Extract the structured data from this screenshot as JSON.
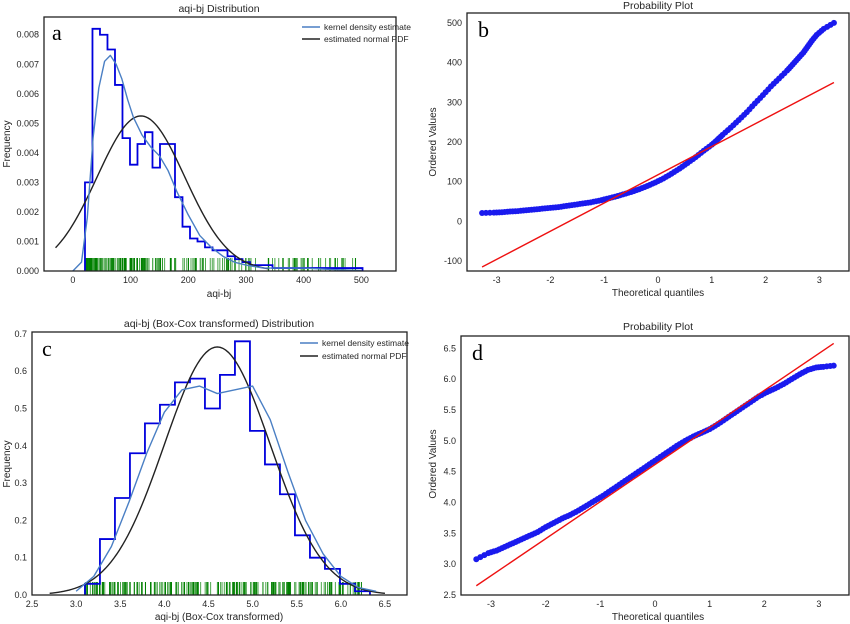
{
  "colors": {
    "hist": "#0000dd",
    "kde": "#4a7fc4",
    "normal": "#222222",
    "rug": "#008000",
    "points": "#1a1aee",
    "fitline": "#ee1111",
    "frame": "#222222"
  },
  "panels": [
    {
      "key": "a",
      "letter": "a",
      "title": "aqi-bj Distribution",
      "xlabel": "aqi-bj",
      "ylabel": "Frequency"
    },
    {
      "key": "b",
      "letter": "b",
      "title": "Probability Plot",
      "xlabel": "Theoretical quantiles",
      "ylabel": "Ordered Values"
    },
    {
      "key": "c",
      "letter": "c",
      "title": "aqi-bj (Box-Cox transformed) Distribution",
      "xlabel": "aqi-bj (Box-Cox transformed)",
      "ylabel": "Frequency"
    },
    {
      "key": "d",
      "letter": "d",
      "title": "Probability Plot",
      "xlabel": "Theoretical quantiles",
      "ylabel": "Ordered Values"
    }
  ],
  "chart_data": [
    {
      "id": "a",
      "type": "histogram+kde",
      "title": "aqi-bj Distribution",
      "xlabel": "aqi-bj",
      "ylabel": "Frequency",
      "xlim": [
        -50,
        560
      ],
      "ylim": [
        0,
        0.0086
      ],
      "xticks": [
        0,
        100,
        200,
        300,
        400,
        500
      ],
      "yticks": [
        0.0,
        0.001,
        0.002,
        0.003,
        0.004,
        0.005,
        0.006,
        0.007,
        0.008
      ],
      "ytick_labels": [
        "0.000",
        "0.001",
        "0.002",
        "0.003",
        "0.004",
        "0.005",
        "0.006",
        "0.007",
        "0.008"
      ],
      "legend": {
        "position": "top-right",
        "entries": [
          "kernel density estimate",
          "estimated normal PDF"
        ]
      },
      "hist_bin_edges": [
        21,
        34,
        47,
        60,
        73,
        86,
        99,
        112,
        125,
        138,
        151,
        164,
        177,
        190,
        203,
        216,
        229,
        242,
        255,
        268,
        281,
        294,
        307,
        320,
        333,
        346,
        359,
        372,
        385,
        398,
        411,
        424,
        437,
        450,
        463,
        476,
        489,
        502
      ],
      "hist_values": [
        0.003,
        0.0082,
        0.008,
        0.0075,
        0.0063,
        0.0045,
        0.0036,
        0.0043,
        0.0047,
        0.0035,
        0.0043,
        0.0043,
        0.0025,
        0.0015,
        0.0011,
        0.001,
        0.0008,
        0.0007,
        0.0007,
        0.0005,
        0.0004,
        0.0003,
        0.0002,
        0.0002,
        0.0002,
        0.0001,
        0.0001,
        0.0001,
        0.0001,
        0.0001,
        0.0001,
        0.0001,
        0.0001,
        0.0001,
        0.0001,
        0.0001,
        0.0001
      ],
      "kde": {
        "name": "kernel density estimate",
        "x": [
          0,
          15,
          25,
          35,
          45,
          55,
          65,
          75,
          85,
          95,
          105,
          120,
          135,
          150,
          165,
          180,
          200,
          220,
          240,
          260,
          280,
          300,
          330,
          360,
          400,
          450,
          500
        ],
        "y": [
          0.0,
          0.0003,
          0.0018,
          0.0045,
          0.0062,
          0.0071,
          0.0073,
          0.007,
          0.0065,
          0.0058,
          0.0052,
          0.0046,
          0.0042,
          0.0039,
          0.0034,
          0.0027,
          0.0019,
          0.0012,
          0.0008,
          0.0005,
          0.0003,
          0.0002,
          0.0001,
          0.0001,
          0.0001,
          5e-05,
          2e-05
        ]
      },
      "normal_pdf": {
        "name": "estimated normal PDF",
        "mean": 118,
        "std": 76,
        "x_range": [
          -30,
          340
        ]
      },
      "rug": {
        "x_range": [
          21,
          500
        ]
      }
    },
    {
      "id": "b",
      "type": "scatter",
      "title": "Probability Plot",
      "xlabel": "Theoretical quantiles",
      "ylabel": "Ordered Values",
      "xlim": [
        -3.55,
        3.55
      ],
      "ylim": [
        -125,
        525
      ],
      "xticks": [
        -3,
        -2,
        -1,
        0,
        1,
        2,
        3
      ],
      "yticks": [
        -100,
        0,
        100,
        200,
        300,
        400,
        500
      ],
      "fit_line": {
        "x": [
          -3.27,
          3.27
        ],
        "y": [
          -115,
          350
        ]
      },
      "points": {
        "x": [
          -3.27,
          -3.05,
          -2.9,
          -2.75,
          -2.6,
          -2.45,
          -2.3,
          -2.15,
          -2.0,
          -1.85,
          -1.7,
          -1.55,
          -1.4,
          -1.25,
          -1.1,
          -0.95,
          -0.8,
          -0.65,
          -0.5,
          -0.35,
          -0.2,
          -0.05,
          0.1,
          0.25,
          0.4,
          0.55,
          0.7,
          0.85,
          1.0,
          1.1,
          1.2,
          1.35,
          1.5,
          1.65,
          1.8,
          1.95,
          2.1,
          2.25,
          2.4,
          2.5,
          2.6,
          2.7,
          2.78,
          2.86,
          2.95,
          3.08,
          3.27
        ],
        "y": [
          21,
          22,
          23,
          25,
          26,
          28,
          30,
          32,
          34,
          36,
          39,
          42,
          45,
          48,
          52,
          57,
          62,
          68,
          74,
          81,
          89,
          98,
          108,
          120,
          133,
          147,
          162,
          178,
          193,
          205,
          218,
          236,
          255,
          275,
          297,
          318,
          340,
          360,
          380,
          395,
          410,
          425,
          440,
          455,
          470,
          485,
          500
        ]
      }
    },
    {
      "id": "c",
      "type": "histogram+kde",
      "title": "aqi-bj (Box-Cox transformed) Distribution",
      "xlabel": "aqi-bj (Box-Cox transformed)",
      "ylabel": "Frequency",
      "xlim": [
        2.5,
        6.75
      ],
      "ylim": [
        0,
        0.705
      ],
      "xticks": [
        2.5,
        3.0,
        3.5,
        4.0,
        4.5,
        5.0,
        5.5,
        6.0,
        6.5
      ],
      "xtick_labels": [
        "2.5",
        "3.0",
        "3.5",
        "4.0",
        "4.5",
        "5.0",
        "5.5",
        "6.0",
        "6.5"
      ],
      "yticks": [
        0.0,
        0.1,
        0.2,
        0.3,
        0.4,
        0.5,
        0.6,
        0.7
      ],
      "ytick_labels": [
        "0.0",
        "0.1",
        "0.2",
        "0.3",
        "0.4",
        "0.5",
        "0.6",
        "0.7"
      ],
      "legend": {
        "position": "top-right",
        "entries": [
          "kernel density estimate",
          "estimated normal PDF"
        ]
      },
      "hist_bin_edges": [
        3.1,
        3.27,
        3.44,
        3.61,
        3.78,
        3.95,
        4.12,
        4.29,
        4.46,
        4.63,
        4.8,
        4.97,
        5.14,
        5.31,
        5.48,
        5.65,
        5.82,
        5.99,
        6.16,
        6.33
      ],
      "hist_values": [
        0.03,
        0.15,
        0.26,
        0.38,
        0.46,
        0.51,
        0.57,
        0.58,
        0.5,
        0.59,
        0.68,
        0.44,
        0.35,
        0.27,
        0.16,
        0.1,
        0.07,
        0.03,
        0.01
      ],
      "kde": {
        "name": "kernel density estimate",
        "x": [
          3.0,
          3.2,
          3.4,
          3.6,
          3.8,
          4.0,
          4.2,
          4.4,
          4.6,
          4.8,
          5.0,
          5.2,
          5.4,
          5.6,
          5.8,
          6.0,
          6.2,
          6.4
        ],
        "y": [
          0.01,
          0.05,
          0.13,
          0.25,
          0.38,
          0.49,
          0.55,
          0.56,
          0.54,
          0.55,
          0.56,
          0.47,
          0.33,
          0.2,
          0.11,
          0.05,
          0.02,
          0.01
        ]
      },
      "normal_pdf": {
        "name": "estimated normal PDF",
        "mean": 4.6,
        "std": 0.6,
        "x_range": [
          2.7,
          6.5
        ]
      },
      "rug": {
        "x_range": [
          3.1,
          6.25
        ]
      }
    },
    {
      "id": "d",
      "type": "scatter",
      "title": "Probability Plot",
      "xlabel": "Theoretical quantiles",
      "ylabel": "Ordered Values",
      "xlim": [
        -3.55,
        3.55
      ],
      "ylim": [
        2.5,
        6.7
      ],
      "xticks": [
        -3,
        -2,
        -1,
        0,
        1,
        2,
        3
      ],
      "yticks": [
        2.5,
        3.0,
        3.5,
        4.0,
        4.5,
        5.0,
        5.5,
        6.0,
        6.5
      ],
      "ytick_labels": [
        "2.5",
        "3.0",
        "3.5",
        "4.0",
        "4.5",
        "5.0",
        "5.5",
        "6.0",
        "6.5"
      ],
      "fit_line": {
        "x": [
          -3.27,
          3.27
        ],
        "y": [
          2.65,
          6.58
        ]
      },
      "points": {
        "x": [
          -3.27,
          -3.05,
          -2.9,
          -2.75,
          -2.6,
          -2.45,
          -2.3,
          -2.15,
          -2.0,
          -1.85,
          -1.7,
          -1.55,
          -1.4,
          -1.25,
          -1.1,
          -0.95,
          -0.8,
          -0.65,
          -0.5,
          -0.35,
          -0.2,
          -0.05,
          0.1,
          0.25,
          0.4,
          0.55,
          0.7,
          0.85,
          1.0,
          1.15,
          1.3,
          1.45,
          1.6,
          1.75,
          1.9,
          2.05,
          2.2,
          2.35,
          2.5,
          2.65,
          2.8,
          2.95,
          3.08,
          3.27
        ],
        "y": [
          3.08,
          3.18,
          3.22,
          3.28,
          3.34,
          3.4,
          3.46,
          3.52,
          3.6,
          3.67,
          3.74,
          3.8,
          3.87,
          3.95,
          4.03,
          4.11,
          4.2,
          4.29,
          4.38,
          4.47,
          4.56,
          4.65,
          4.74,
          4.83,
          4.92,
          5.0,
          5.07,
          5.13,
          5.19,
          5.27,
          5.36,
          5.45,
          5.54,
          5.63,
          5.72,
          5.79,
          5.85,
          5.92,
          6.0,
          6.08,
          6.15,
          6.19,
          6.2,
          6.22
        ]
      }
    }
  ]
}
